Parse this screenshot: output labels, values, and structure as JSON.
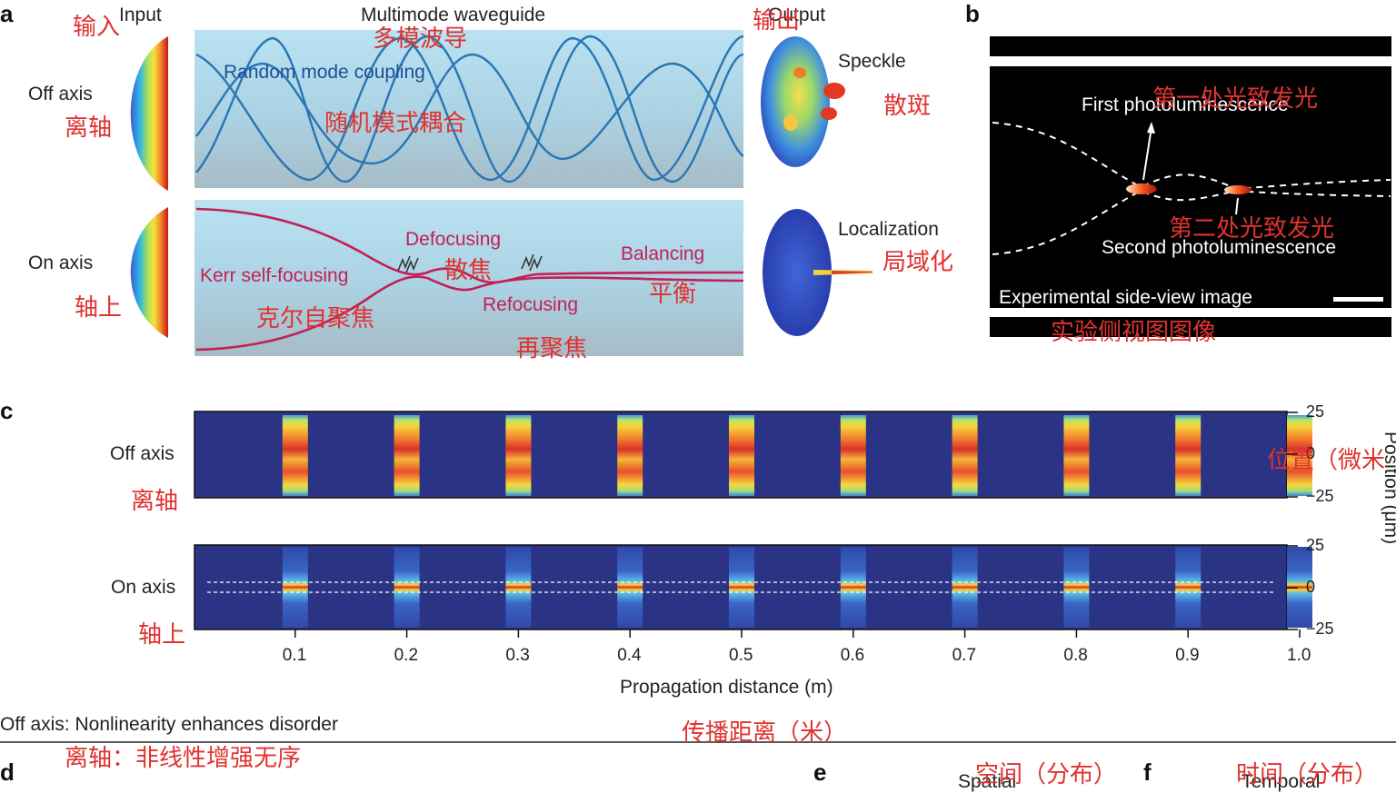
{
  "panel_a": {
    "letter": "a",
    "input_label": "Input",
    "input_label_cn": "输入",
    "waveguide_title": "Multimode waveguide",
    "waveguide_title_cn": "多模波导",
    "output_label": "Output",
    "output_label_cn": "输出",
    "off_axis": "Off axis",
    "off_axis_cn": "离轴",
    "on_axis": "On axis",
    "on_axis_cn": "轴上",
    "random_mode": "Random mode coupling",
    "random_mode_cn": "随机模式耦合",
    "speckle": "Speckle",
    "speckle_cn": "散斑",
    "kerr": "Kerr self-focusing",
    "kerr_cn": "克尔自聚焦",
    "defocusing": "Defocusing",
    "defocusing_cn": "散焦",
    "refocusing": "Refocusing",
    "refocusing_cn": "再聚焦",
    "balancing": "Balancing",
    "balancing_cn": "平衡",
    "localization": "Localization",
    "localization_cn": "局域化"
  },
  "panel_b": {
    "letter": "b",
    "first_pl": "First photoluminescence",
    "first_pl_cn": "第一处光致发光",
    "second_pl": "Second photoluminescence",
    "second_pl_cn": "第二处光致发光",
    "caption": "Experimental side-view image",
    "caption_cn": "实验侧视图图像"
  },
  "panel_c": {
    "letter": "c",
    "off_axis": "Off axis",
    "off_axis_cn": "离轴",
    "on_axis": "On axis",
    "on_axis_cn": "轴上",
    "position_label": "Position (μm)",
    "position_label_cn": "位置（微米",
    "xlabel": "Propagation distance (m)",
    "xlabel_cn": "传播距离（米）"
  },
  "chart_data": {
    "type": "heatmap",
    "title": "",
    "xlabel": "Propagation distance (m)",
    "ylabel": "Position (μm)",
    "x": [
      0.1,
      0.2,
      0.3,
      0.4,
      0.5,
      0.6,
      0.7,
      0.8,
      0.9,
      1.0
    ],
    "x_tick_labels": [
      "0.1",
      "0.2",
      "0.3",
      "0.4",
      "0.5",
      "0.6",
      "0.7",
      "0.8",
      "0.9",
      "1.0"
    ],
    "y_tick_labels": [
      "25",
      "0",
      "−25"
    ],
    "ylim": [
      -25,
      25
    ],
    "series": [
      {
        "name": "Off axis",
        "profile": "speckle"
      },
      {
        "name": "On axis",
        "profile": "localized"
      }
    ]
  },
  "footer": {
    "off_axis_note": "Off axis: Nonlinearity enhances disorder",
    "off_axis_note_cn": "离轴：非线性增强无序",
    "d_letter": "d",
    "e_letter": "e",
    "f_letter": "f",
    "spatial": "Spatial",
    "spatial_cn": "空间（分布）",
    "temporal": "Temporal",
    "temporal_cn": "时间（分布）"
  },
  "colors": {
    "accent_red": "#e0322f",
    "curve_crimson": "#c41f55",
    "curve_blue": "#2a76b4",
    "heatmap_bg": "#2b3384"
  }
}
